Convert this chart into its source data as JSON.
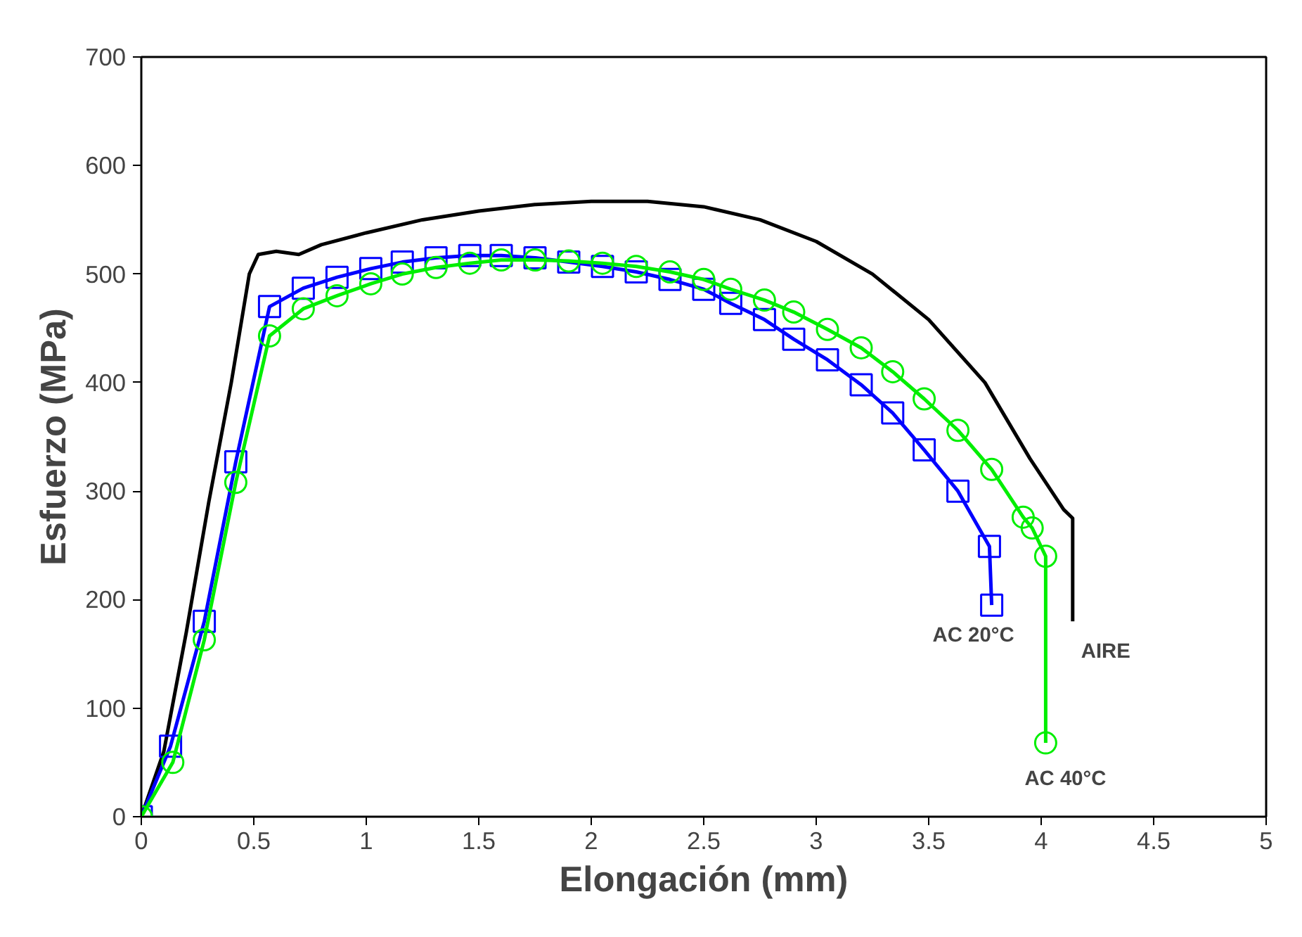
{
  "chart_data": {
    "type": "line",
    "xlabel": "Elongación (mm)",
    "ylabel": "Esfuerzo (MPa)",
    "xlim": [
      0,
      5
    ],
    "xticks": [
      0,
      0.5,
      1,
      1.5,
      2,
      2.5,
      3,
      3.5,
      4,
      4.5,
      5
    ],
    "ylim": [
      0,
      700
    ],
    "yticks": [
      0,
      100,
      200,
      300,
      400,
      500,
      600,
      700
    ],
    "grid": false,
    "series": [
      {
        "name": "AIRE",
        "color": "#000000",
        "marker": "none",
        "x": [
          0,
          0.1,
          0.2,
          0.3,
          0.4,
          0.48,
          0.52,
          0.6,
          0.7,
          0.8,
          1.0,
          1.25,
          1.5,
          1.75,
          2.0,
          2.25,
          2.5,
          2.75,
          3.0,
          3.25,
          3.5,
          3.75,
          3.95,
          4.1,
          4.14,
          4.14
        ],
        "values": [
          0,
          60,
          170,
          290,
          400,
          500,
          518,
          521,
          518,
          527,
          538,
          550,
          558,
          564,
          567,
          567,
          562,
          550,
          530,
          500,
          458,
          400,
          330,
          283,
          275,
          180
        ]
      },
      {
        "name": "AC 20°C",
        "color": "#0000ff",
        "marker": "square",
        "x": [
          0,
          0.13,
          0.28,
          0.42,
          0.57,
          0.72,
          0.87,
          1.02,
          1.16,
          1.31,
          1.46,
          1.6,
          1.75,
          1.9,
          2.05,
          2.2,
          2.35,
          2.5,
          2.62,
          2.77,
          2.9,
          3.05,
          3.2,
          3.34,
          3.48,
          3.63,
          3.77,
          3.78
        ],
        "values": [
          0,
          65,
          180,
          327,
          470,
          487,
          497,
          505,
          511,
          515,
          517,
          517,
          515,
          511,
          507,
          502,
          495,
          486,
          473,
          458,
          440,
          421,
          398,
          372,
          338,
          300,
          249,
          195
        ]
      },
      {
        "name": "AC 40°C",
        "color": "#00ee00",
        "marker": "circle",
        "x": [
          0,
          0.14,
          0.28,
          0.42,
          0.57,
          0.72,
          0.87,
          1.02,
          1.16,
          1.31,
          1.46,
          1.6,
          1.75,
          1.9,
          2.05,
          2.2,
          2.35,
          2.5,
          2.62,
          2.77,
          2.9,
          3.05,
          3.2,
          3.34,
          3.48,
          3.63,
          3.78,
          3.92,
          3.96,
          4.02,
          4.02
        ],
        "values": [
          0,
          50,
          163,
          308,
          443,
          468,
          480,
          491,
          500,
          506,
          510,
          513,
          513,
          512,
          510,
          507,
          502,
          495,
          486,
          476,
          465,
          449,
          432,
          410,
          385,
          356,
          320,
          276,
          266,
          240,
          68
        ]
      }
    ]
  }
}
